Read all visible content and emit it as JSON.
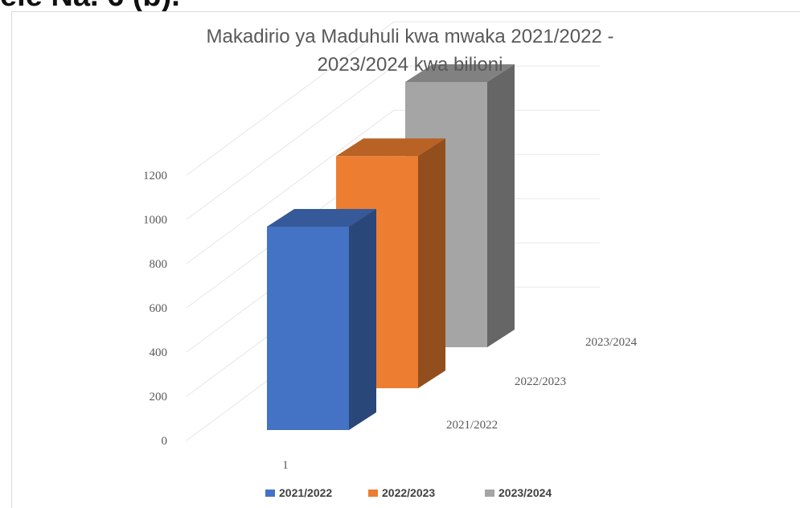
{
  "heading_text": "ele Na. 6 (b).",
  "chart_data": {
    "type": "bar",
    "title_lines": [
      "Makadirio ya Maduhuli kwa mwaka 2021/2022 -",
      "2023/2024 kwa bilioni"
    ],
    "categories": [
      "1"
    ],
    "depth_labels": [
      "2021/2022",
      "2022/2023",
      "2023/2024"
    ],
    "yticks": [
      "0",
      "200",
      "400",
      "600",
      "800",
      "1000",
      "1200"
    ],
    "ylim": [
      0,
      1200
    ],
    "grid": true,
    "legend_position": "bottom",
    "series": [
      {
        "name": "2021/2022",
        "values": [
          920
        ],
        "color": "#4472c4"
      },
      {
        "name": "2022/2023",
        "values": [
          1050
        ],
        "color": "#ed7d31"
      },
      {
        "name": "2023/2024",
        "values": [
          1200
        ],
        "color": "#a5a5a5"
      }
    ]
  }
}
